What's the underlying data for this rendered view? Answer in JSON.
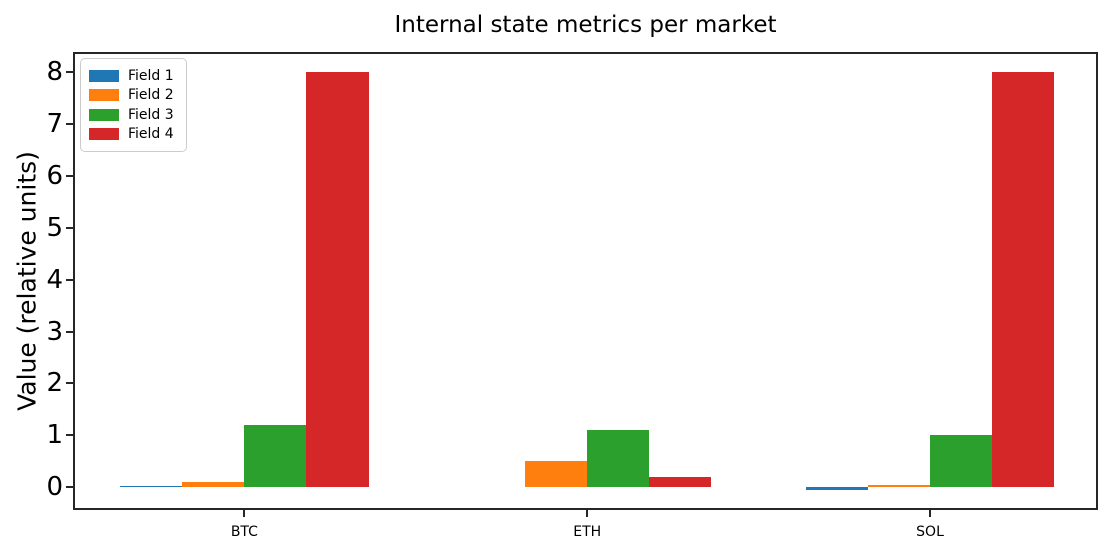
{
  "chart_data": {
    "type": "bar",
    "title": "Internal state metrics per market",
    "xlabel": "",
    "ylabel": "Value (relative units)",
    "categories": [
      "BTC",
      "ETH",
      "SOL"
    ],
    "series": [
      {
        "name": "Field 1",
        "color": "#1f77b4",
        "values": [
          0.02,
          0.0,
          -0.06
        ]
      },
      {
        "name": "Field 2",
        "color": "#ff7f0e",
        "values": [
          0.1,
          0.5,
          0.05
        ]
      },
      {
        "name": "Field 3",
        "color": "#2ca02c",
        "values": [
          1.2,
          1.1,
          1.0
        ]
      },
      {
        "name": "Field 4",
        "color": "#d62728",
        "values": [
          8.0,
          0.2,
          8.0
        ]
      }
    ],
    "yticks": [
      0,
      1,
      2,
      3,
      4,
      5,
      6,
      7,
      8
    ],
    "ylim": [
      -0.44,
      8.39
    ],
    "xlim": [
      -0.5,
      2.49
    ],
    "bar_width": 0.181,
    "grid": false,
    "legend": {
      "position": "upper left",
      "labels": [
        "Field 1",
        "Field 2",
        "Field 3",
        "Field 4"
      ]
    },
    "axis_color": "#262626",
    "text_color": "#000000"
  }
}
